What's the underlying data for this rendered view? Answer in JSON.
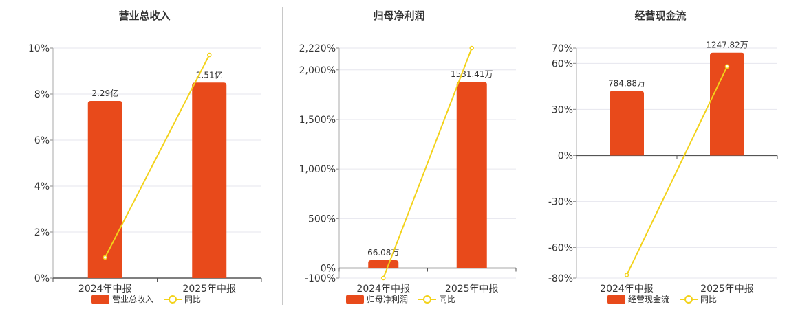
{
  "colors": {
    "bar": "#e84a1b",
    "line": "#f3d21a",
    "grid": "#e6e6ee",
    "axis": "#555555",
    "text": "#333333"
  },
  "chart_data": [
    {
      "type": "bar",
      "title": "营业总收入",
      "categories": [
        "2024年中报",
        "2025年中报"
      ],
      "bar_labels": [
        "2.29亿",
        "2.51亿"
      ],
      "bar_heights_pct": [
        7.7,
        8.5
      ],
      "line_values_pct": [
        0.9,
        9.7
      ],
      "ylim": [
        0,
        10
      ],
      "yticks": [
        0,
        2,
        4,
        6,
        8,
        10
      ],
      "ytick_labels": [
        "0%",
        "2%",
        "4%",
        "6%",
        "8%",
        "10%"
      ],
      "legend": [
        "营业总收入",
        "同比"
      ],
      "legend_position": "bottom-center"
    },
    {
      "type": "bar",
      "title": "归母净利润",
      "categories": [
        "2024年中报",
        "2025年中报"
      ],
      "bar_labels": [
        "66.08万",
        "1531.41万"
      ],
      "bar_heights_pct": [
        80,
        1880
      ],
      "line_values_pct": [
        -100,
        2220
      ],
      "ylim": [
        -100,
        2220
      ],
      "yticks": [
        -100,
        0,
        500,
        1000,
        1500,
        2000,
        2220
      ],
      "ytick_labels": [
        "-100%",
        "0%",
        "500%",
        "1,000%",
        "1,500%",
        "2,000%",
        "2,220%"
      ],
      "legend": [
        "归母净利润",
        "同比"
      ],
      "legend_position": "bottom-center"
    },
    {
      "type": "bar",
      "title": "经营现金流",
      "categories": [
        "2024年中报",
        "2025年中报"
      ],
      "bar_labels": [
        "784.88万",
        "1247.82万"
      ],
      "bar_heights_pct": [
        42,
        67
      ],
      "line_values_pct": [
        -78,
        58
      ],
      "ylim": [
        -80,
        70
      ],
      "yticks": [
        -80,
        -60,
        -30,
        0,
        30,
        60,
        70
      ],
      "ytick_labels": [
        "-80%",
        "-60%",
        "-30%",
        "0%",
        "30%",
        "60%",
        "70%"
      ],
      "legend": [
        "经营现金流",
        "同比"
      ],
      "legend_position": "bottom-center"
    }
  ]
}
